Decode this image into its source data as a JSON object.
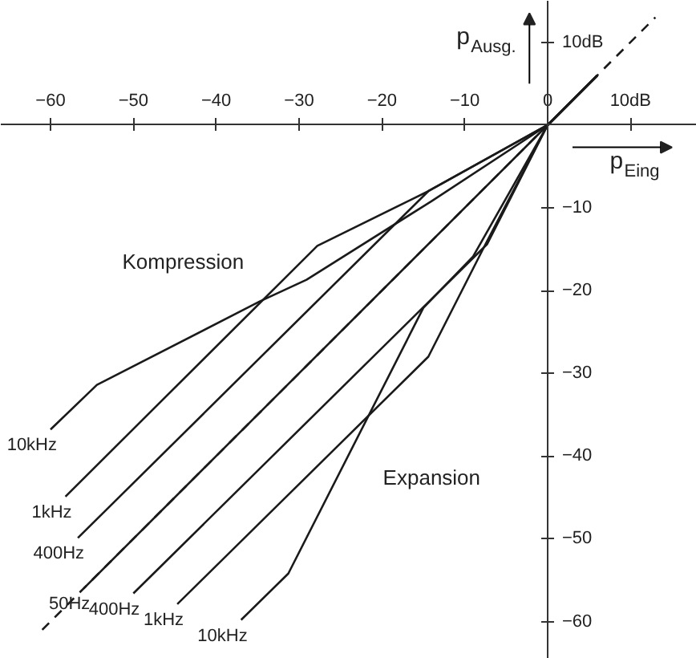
{
  "chart_data": {
    "type": "line",
    "xlabel": "p$_{Eing}$",
    "ylabel": "p$_{Ausg.}$",
    "xlim": [
      -66,
      18
    ],
    "ylim": [
      -64.5,
      15
    ],
    "xticks": [
      -60,
      -50,
      -40,
      -30,
      -20,
      -10,
      0,
      {
        "value": 10,
        "label": "10dB"
      }
    ],
    "yticks": [
      {
        "value": 10,
        "label": "10dB"
      },
      -10,
      -20,
      -30,
      -40,
      -50,
      -60
    ],
    "grid": false,
    "line_style": "solid",
    "annotations": [
      "Kompression",
      "Expansion"
    ],
    "series": [
      {
        "name": null,
        "color": "#1a1a1a",
        "line_style": "dashed",
        "x": [
          -61,
          13
        ],
        "values": [
          -61,
          13
        ]
      },
      {
        "name": "10kHz",
        "color": "#1a1a1a",
        "x": [
          -60,
          -54.4,
          -34.7,
          -29.1,
          -14,
          0,
          6
        ],
        "values": [
          -36.8,
          -31.4,
          -21.3,
          -18.7,
          -9.2,
          0,
          6
        ]
      },
      {
        "name": "1kHz",
        "color": "#1a1a1a",
        "x": [
          -58.2,
          -27.8,
          -14.4,
          0,
          6
        ],
        "values": [
          -44.9,
          -14.6,
          -8,
          0,
          6
        ]
      },
      {
        "name": "400Hz",
        "color": "#1a1a1a",
        "x": [
          -56.7,
          -14.4,
          0,
          6
        ],
        "values": [
          -49.9,
          -8,
          0,
          6
        ]
      },
      {
        "name": "50Hz",
        "color": "#1a1a1a",
        "x": [
          -56,
          0,
          6
        ],
        "values": [
          -56,
          0,
          6
        ]
      },
      {
        "name": "400Hz",
        "color": "#1a1a1a",
        "x": [
          -50,
          -7.3,
          0,
          6
        ],
        "values": [
          -56.6,
          -14.4,
          0,
          6
        ]
      },
      {
        "name": "1kHz",
        "color": "#1a1a1a",
        "x": [
          -44.7,
          -14.4,
          -7.5,
          0,
          6
        ],
        "values": [
          -57.9,
          -28,
          -14.4,
          0,
          6
        ]
      },
      {
        "name": "10kHz",
        "color": "#1a1a1a",
        "x": [
          -37,
          -31.3,
          -15,
          -9,
          0,
          6
        ],
        "values": [
          -59.8,
          -54.2,
          -22.1,
          -15.9,
          0,
          6
        ]
      }
    ]
  }
}
